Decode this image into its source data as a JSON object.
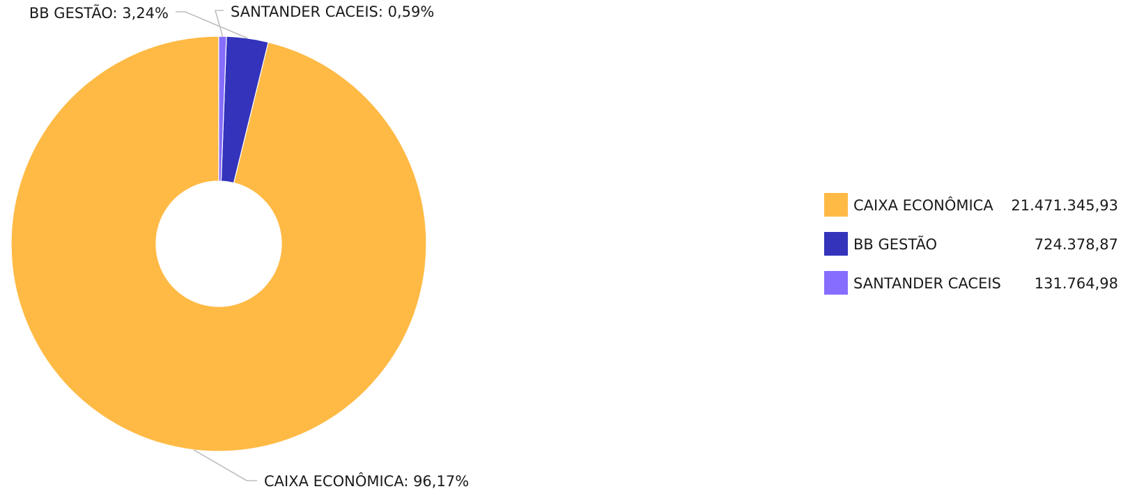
{
  "chart_data": {
    "type": "pie",
    "variant": "donut",
    "slices": [
      {
        "name": "CAIXA ECONÔMICA",
        "value": 21471345.93,
        "value_label": "21.471.345,93",
        "percent": 96.17,
        "percent_label": "CAIXA ECONÔMICA: 96,17%",
        "color": "#FFBA45"
      },
      {
        "name": "BB GESTÃO",
        "value": 724378.87,
        "value_label": "724.378,87",
        "percent": 3.24,
        "percent_label": "BB GESTÃO: 3,24%",
        "color": "#3333BB"
      },
      {
        "name": "SANTANDER CACEIS",
        "value": 131764.98,
        "value_label": "131.764,98",
        "percent": 0.59,
        "percent_label": "SANTANDER CACEIS: 0,59%",
        "color": "#866DFF"
      }
    ],
    "legend_position": "right"
  }
}
